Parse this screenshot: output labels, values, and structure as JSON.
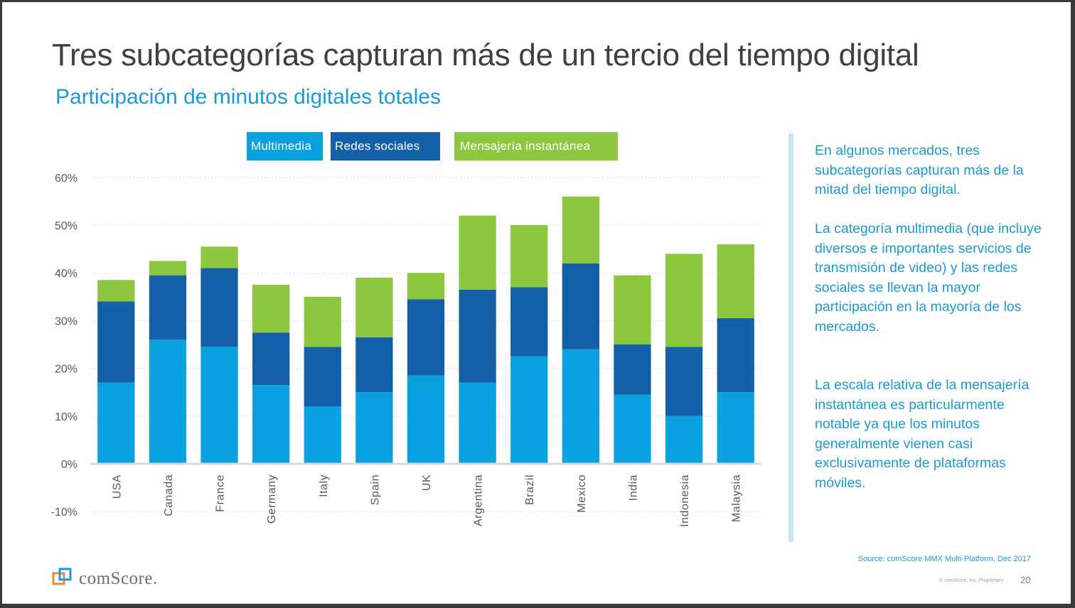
{
  "title": "Tres subcategorías capturan más de un tercio del tiempo digital",
  "subtitle": "Participación de minutos digitales totales",
  "colors": {
    "multimedia": "#0aa1e0",
    "social": "#1460a8",
    "messaging": "#8dc63f",
    "accent": "#1a9ad6"
  },
  "chart_data": {
    "type": "bar",
    "stacked": true,
    "categories": [
      "USA",
      "Canada",
      "France",
      "Germany",
      "Italy",
      "Spain",
      "UK",
      "Argentina",
      "Brazil",
      "Mexico",
      "India",
      "Indonesia",
      "Malaysia"
    ],
    "series": [
      {
        "name": "Multimedia",
        "values": [
          17,
          26,
          24.5,
          16.5,
          12,
          15,
          18.5,
          17,
          22.5,
          24,
          14.5,
          10,
          15
        ]
      },
      {
        "name": "Redes sociales",
        "values": [
          17,
          13.5,
          16.5,
          11,
          12.5,
          11.5,
          16,
          19.5,
          14.5,
          18,
          10.5,
          14.5,
          15.5
        ]
      },
      {
        "name": "Mensajería instantánea",
        "values": [
          4.5,
          3,
          4.5,
          10,
          10.5,
          12.5,
          5.5,
          15.5,
          13,
          14,
          14.5,
          19.5,
          15.5
        ]
      }
    ],
    "ylim": [
      -10,
      60
    ],
    "yticks": [
      "60%",
      "50%",
      "40%",
      "30%",
      "20%",
      "10%",
      "0%",
      "-10%"
    ],
    "ytick_values": [
      60,
      50,
      40,
      30,
      20,
      10,
      0,
      -10
    ],
    "legend_position": "top"
  },
  "sidebar": {
    "paragraphs": [
      "En algunos mercados, tres subcategorías capturan más de la mitad del tiempo digital.",
      "La categoría multimedia (que incluye diversos e importantes servicios de transmisión de video) y las redes sociales se llevan la mayor participación en la mayoría de los mercados.",
      "La escala relativa de la mensajería instantánea es particularmente notable ya que los minutos generalmente vienen casi exclusivamente de plataformas móviles."
    ]
  },
  "footer": {
    "source": "Source: comScore MMX Multi-Platform, Dec 2017",
    "copyright": "© comScore, Inc. Proprietary.",
    "page_number": "20",
    "logo_text": "comScore."
  }
}
